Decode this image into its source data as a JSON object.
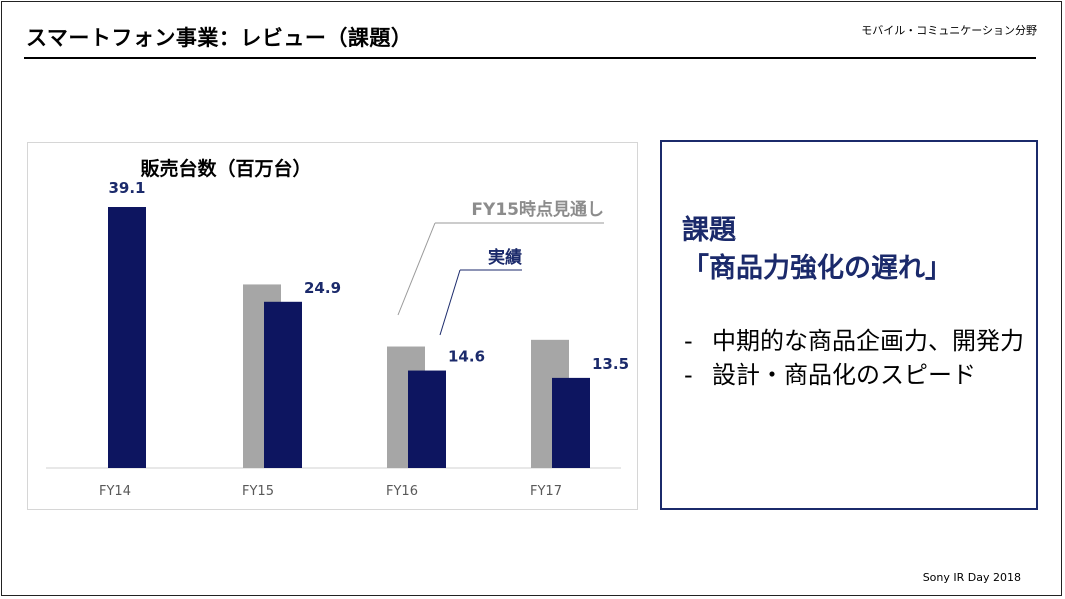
{
  "slide": {
    "title": "スマートフォン事業：レビュー（課題）",
    "section": "モバイル・コミュニケーション分野",
    "footer": "Sony IR Day 2018"
  },
  "issue": {
    "heading_line1": "課題",
    "heading_line2": "「商品力強化の遅れ」",
    "bullets": [
      "中期的な商品企画力、開発力",
      "設計・商品化のスピード"
    ],
    "bullet_marker": "-"
  },
  "chart_data": {
    "type": "bar",
    "title": "販売台数（百万台）",
    "categories": [
      "FY14",
      "FY15",
      "FY16",
      "FY17"
    ],
    "series": [
      {
        "name": "FY15時点見通し",
        "values": [
          null,
          27.5,
          18.2,
          19.2
        ],
        "color": "#a6a6a6"
      },
      {
        "name": "実績",
        "values": [
          39.1,
          24.9,
          14.6,
          13.5
        ],
        "color": "#0d1560"
      }
    ],
    "data_labels": [
      "39.1",
      "24.9",
      "14.6",
      "13.5"
    ],
    "ylim": [
      0,
      40
    ],
    "grid": false
  },
  "colors": {
    "accent": "#1b2a6b",
    "bar_actual": "#0d1560",
    "bar_forecast": "#a6a6a6"
  }
}
